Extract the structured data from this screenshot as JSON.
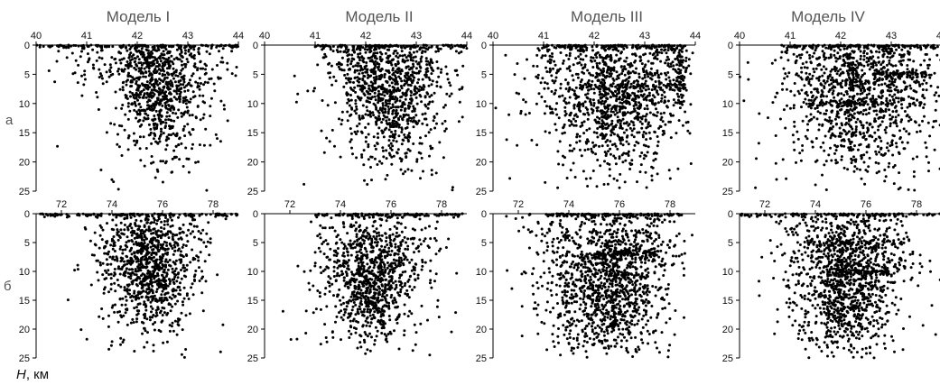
{
  "figure": {
    "row_labels": [
      "a",
      "б"
    ],
    "depth_axis_label_symbol": "H",
    "depth_axis_label_unit": ", км"
  },
  "chart_data": [
    {
      "type": "scatter",
      "panel": "a1",
      "title": "Модель I",
      "row": "a",
      "xlim": [
        40,
        44
      ],
      "ylim": [
        0,
        25
      ],
      "xticks": [
        40,
        41,
        42,
        43,
        44
      ],
      "yticks": [
        0,
        5,
        10,
        15,
        20,
        25
      ],
      "y_inverted": true,
      "clusters": [
        {
          "cx": 42.55,
          "sx": 0.35,
          "cy": 9,
          "sy": 5,
          "n": 380
        },
        {
          "cx": 42.1,
          "sx": 0.25,
          "cy": 6,
          "sy": 5,
          "n": 180
        },
        {
          "cx": 42.7,
          "sx": 0.6,
          "cy": 4,
          "sy": 3,
          "n": 200
        },
        {
          "cx": 41.4,
          "sx": 0.5,
          "cy": 3,
          "sy": 3,
          "n": 60
        },
        {
          "cx": 42.6,
          "sx": 0.8,
          "cy": 12,
          "sy": 6,
          "n": 120
        }
      ],
      "surface_line": [
        40,
        44
      ]
    },
    {
      "type": "scatter",
      "panel": "a2",
      "title": "Модель II",
      "row": "a",
      "xlim": [
        40,
        44
      ],
      "ylim": [
        0,
        25
      ],
      "xticks": [
        40,
        41,
        42,
        43,
        44
      ],
      "yticks": [
        0,
        5,
        10,
        15,
        20,
        25
      ],
      "y_inverted": true,
      "clusters": [
        {
          "cx": 42.6,
          "sx": 0.35,
          "cy": 10,
          "sy": 5,
          "n": 380
        },
        {
          "cx": 42.0,
          "sx": 0.3,
          "cy": 7,
          "sy": 5,
          "n": 200
        },
        {
          "cx": 42.9,
          "sx": 0.5,
          "cy": 4,
          "sy": 3,
          "n": 200
        },
        {
          "cx": 41.7,
          "sx": 0.3,
          "cy": 3,
          "sy": 3,
          "n": 80
        },
        {
          "cx": 42.5,
          "sx": 0.7,
          "cy": 14,
          "sy": 6,
          "n": 140
        }
      ],
      "surface_line": [
        41,
        44
      ]
    },
    {
      "type": "scatter",
      "panel": "a3",
      "title": "Модель III",
      "row": "a",
      "xlim": [
        40,
        44
      ],
      "ylim": [
        0,
        25
      ],
      "xticks": [
        40,
        41,
        42,
        43,
        44
      ],
      "yticks": [
        0,
        5,
        10,
        15,
        20,
        25
      ],
      "y_inverted": true,
      "clusters": [
        {
          "cx": 42.5,
          "sx": 0.5,
          "cy": 10,
          "sy": 6,
          "n": 500
        },
        {
          "cx": 41.6,
          "sx": 0.5,
          "cy": 6,
          "sy": 5,
          "n": 250
        },
        {
          "cx": 43.2,
          "sx": 0.5,
          "cy": 5,
          "sy": 4,
          "n": 200
        },
        {
          "cx": 42.4,
          "sx": 0.9,
          "cy": 15,
          "sy": 6,
          "n": 180
        }
      ],
      "surface_line": [
        41,
        43.8
      ],
      "h_lines": [
        {
          "y": 7,
          "x": [
            42.1,
            43.8
          ]
        }
      ],
      "v_lines": [
        {
          "x": 42.2,
          "y": [
            0,
            16
          ]
        },
        {
          "x": 43.7,
          "y": [
            0,
            10
          ]
        }
      ]
    },
    {
      "type": "scatter",
      "panel": "a4",
      "title": "Модель IV",
      "row": "a",
      "xlim": [
        40,
        44
      ],
      "ylim": [
        0,
        25
      ],
      "xticks": [
        40,
        41,
        42,
        43,
        44
      ],
      "yticks": [
        0,
        5,
        10,
        15,
        20,
        25
      ],
      "y_inverted": true,
      "clusters": [
        {
          "cx": 42.5,
          "sx": 0.5,
          "cy": 10,
          "sy": 6,
          "n": 480
        },
        {
          "cx": 41.6,
          "sx": 0.5,
          "cy": 6,
          "sy": 5,
          "n": 250
        },
        {
          "cx": 43.1,
          "sx": 0.5,
          "cy": 5,
          "sy": 4,
          "n": 200
        },
        {
          "cx": 42.4,
          "sx": 0.9,
          "cy": 15,
          "sy": 6,
          "n": 180
        }
      ],
      "surface_line": [
        40.8,
        44
      ],
      "h_lines": [
        {
          "y": 10,
          "x": [
            41.4,
            43.6
          ]
        },
        {
          "y": 5,
          "x": [
            42.6,
            43.8
          ]
        }
      ],
      "v_lines": [
        {
          "x": 42.2,
          "y": [
            0,
            18
          ]
        }
      ]
    },
    {
      "type": "scatter",
      "panel": "b1",
      "title": "",
      "row": "б",
      "xlim": [
        71,
        79
      ],
      "ylim": [
        0,
        25
      ],
      "xticks": [
        72,
        74,
        76,
        78
      ],
      "yticks": [
        0,
        5,
        10,
        15,
        20,
        25
      ],
      "y_inverted": true,
      "clusters": [
        {
          "cx": 75.5,
          "sx": 0.6,
          "cy": 10,
          "sy": 5,
          "n": 500
        },
        {
          "cx": 74.6,
          "sx": 0.8,
          "cy": 6,
          "sy": 4,
          "n": 220
        },
        {
          "cx": 76.6,
          "sx": 0.7,
          "cy": 6,
          "sy": 4,
          "n": 180
        },
        {
          "cx": 75.3,
          "sx": 1.2,
          "cy": 15,
          "sy": 5,
          "n": 140
        }
      ],
      "surface_line": [
        71,
        79
      ]
    },
    {
      "type": "scatter",
      "panel": "b2",
      "title": "",
      "row": "б",
      "xlim": [
        71,
        79
      ],
      "ylim": [
        0,
        25
      ],
      "xticks": [
        72,
        74,
        76,
        78
      ],
      "yticks": [
        0,
        5,
        10,
        15,
        20,
        25
      ],
      "y_inverted": true,
      "clusters": [
        {
          "cx": 75.3,
          "sx": 0.6,
          "cy": 12,
          "sy": 5,
          "n": 500
        },
        {
          "cx": 74.3,
          "sx": 0.8,
          "cy": 7,
          "sy": 4,
          "n": 200
        },
        {
          "cx": 76.3,
          "sx": 0.8,
          "cy": 7,
          "sy": 4,
          "n": 180
        },
        {
          "cx": 75.2,
          "sx": 1.2,
          "cy": 17,
          "sy": 4,
          "n": 140
        }
      ],
      "surface_line": [
        73,
        79
      ]
    },
    {
      "type": "scatter",
      "panel": "b3",
      "title": "",
      "row": "б",
      "xlim": [
        71,
        79
      ],
      "ylim": [
        0,
        25
      ],
      "xticks": [
        72,
        74,
        76,
        78
      ],
      "yticks": [
        0,
        5,
        10,
        15,
        20,
        25
      ],
      "y_inverted": true,
      "clusters": [
        {
          "cx": 75.6,
          "sx": 0.9,
          "cy": 12,
          "sy": 6,
          "n": 650
        },
        {
          "cx": 74.0,
          "sx": 1.0,
          "cy": 8,
          "sy": 5,
          "n": 250
        },
        {
          "cx": 77.0,
          "sx": 0.8,
          "cy": 7,
          "sy": 4,
          "n": 200
        },
        {
          "cx": 75.3,
          "sx": 1.3,
          "cy": 18,
          "sy": 4,
          "n": 220
        }
      ],
      "surface_line": [
        73,
        78.5
      ],
      "h_lines": [
        {
          "y": 7,
          "x": [
            75,
            77.5
          ]
        }
      ],
      "v_lines": [
        {
          "x": 75.8,
          "y": [
            0,
            20
          ]
        }
      ]
    },
    {
      "type": "scatter",
      "panel": "b4",
      "title": "",
      "row": "б",
      "xlim": [
        71,
        79
      ],
      "ylim": [
        0,
        25
      ],
      "xticks": [
        72,
        74,
        76,
        78
      ],
      "yticks": [
        0,
        5,
        10,
        15,
        20,
        25
      ],
      "y_inverted": true,
      "clusters": [
        {
          "cx": 75.3,
          "sx": 0.8,
          "cy": 12,
          "sy": 6,
          "n": 600
        },
        {
          "cx": 74.0,
          "sx": 0.9,
          "cy": 8,
          "sy": 5,
          "n": 230
        },
        {
          "cx": 76.6,
          "sx": 0.8,
          "cy": 7,
          "sy": 4,
          "n": 180
        },
        {
          "cx": 75.2,
          "sx": 1.2,
          "cy": 18,
          "sy": 4,
          "n": 200
        }
      ],
      "surface_line": [
        71,
        79
      ],
      "h_lines": [
        {
          "y": 5,
          "x": [
            73.5,
            77.5
          ]
        },
        {
          "y": 10,
          "x": [
            75,
            77
          ]
        }
      ],
      "v_lines": [
        {
          "x": 75.0,
          "y": [
            2,
            20
          ]
        }
      ]
    }
  ]
}
